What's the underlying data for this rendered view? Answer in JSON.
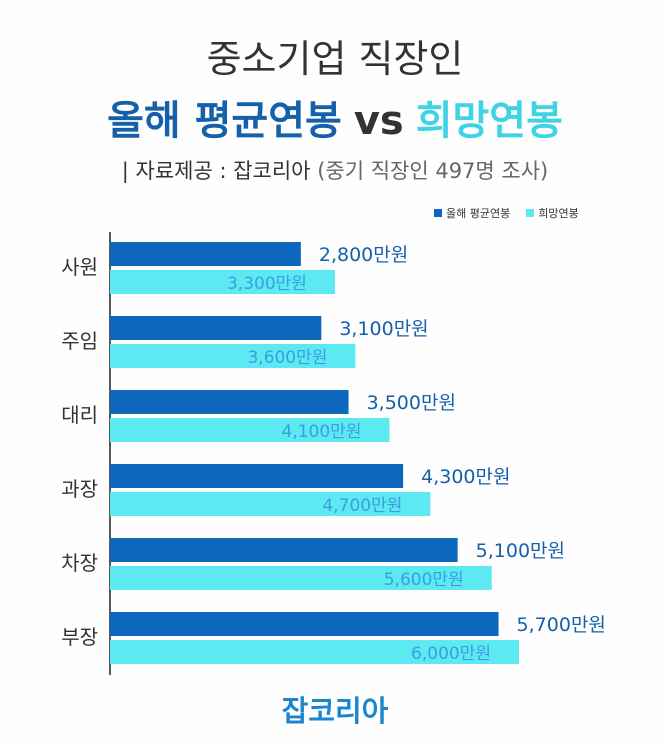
{
  "title_line1": "중소기업 직장인",
  "title_line2": {
    "part_a": "올해 평균연봉",
    "vs": "vs",
    "part_b": "희망연봉"
  },
  "source": {
    "label": "| 자료제공 : 잡코리아",
    "note": "(중기 직장인 497명 조사)"
  },
  "footer_logo": "잡코리아",
  "chart_data": {
    "type": "bar",
    "orientation": "horizontal",
    "categories": [
      "사원",
      "주임",
      "대리",
      "과장",
      "차장",
      "부장"
    ],
    "series": [
      {
        "name": "올해 평균연봉",
        "color": "#0d68bd",
        "values": [
          2800,
          3100,
          3500,
          4300,
          5100,
          5700
        ],
        "labels": [
          "2,800만원",
          "3,100만원",
          "3,500만원",
          "4,300만원",
          "5,100만원",
          "5,700만원"
        ]
      },
      {
        "name": "희망연봉",
        "color": "#5de9f1",
        "values": [
          3300,
          3600,
          4100,
          4700,
          5600,
          6000
        ],
        "labels": [
          "3,300만원",
          "3,600만원",
          "4,100만원",
          "4,700만원",
          "5,600만원",
          "6,000만원"
        ]
      }
    ],
    "unit": "만원",
    "legend_position": "top-right",
    "grid": false
  }
}
